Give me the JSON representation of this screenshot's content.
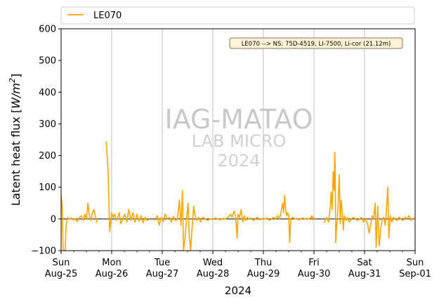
{
  "chart_data": {
    "type": "line",
    "xlabel": "2024",
    "ylabel_main": "Latent heat flux [",
    "ylabel_unit": "W/m",
    "ylabel_exp": "2",
    "ylabel_close": "]",
    "ylim": [
      -100,
      600
    ],
    "yticks": [
      -100,
      0,
      100,
      200,
      300,
      400,
      500,
      600
    ],
    "xlim": [
      0,
      7
    ],
    "xticks": [
      {
        "x": 0,
        "day": "Sun",
        "date": "Aug-25"
      },
      {
        "x": 1,
        "day": "Mon",
        "date": "Aug-26"
      },
      {
        "x": 2,
        "day": "Tue",
        "date": "Aug-27"
      },
      {
        "x": 3,
        "day": "Wed",
        "date": "Aug-28"
      },
      {
        "x": 4,
        "day": "Thu",
        "date": "Aug-29"
      },
      {
        "x": 5,
        "day": "Fri",
        "date": "Aug-30"
      },
      {
        "x": 6,
        "day": "Sat",
        "date": "Aug-31"
      },
      {
        "x": 7,
        "day": "Sun",
        "date": "Sep-01"
      }
    ],
    "grid": "vertical-major",
    "zero_line": true,
    "legend_position": "top, above plot",
    "annotation": "LE070 --> NS: 75D-4519, LI-7500, Li-cor (21.12m)",
    "watermark": [
      "IAG-MATAO",
      "LAB MICRO",
      "2024"
    ],
    "series": [
      {
        "name": "LE070",
        "color": "#FFA500",
        "segments": [
          [
            [
              0.0,
              75
            ],
            [
              0.02,
              40
            ],
            [
              0.04,
              -95
            ],
            [
              0.06,
              -100
            ],
            [
              0.08,
              -100
            ],
            [
              0.1,
              -20
            ],
            [
              0.13,
              5
            ],
            [
              0.16,
              -2
            ],
            [
              0.2,
              3
            ],
            [
              0.24,
              -3
            ],
            [
              0.28,
              0
            ],
            [
              0.32,
              -8
            ],
            [
              0.36,
              5
            ],
            [
              0.4,
              10
            ],
            [
              0.44,
              -5
            ],
            [
              0.47,
              15
            ],
            [
              0.5,
              0
            ],
            [
              0.53,
              50
            ],
            [
              0.56,
              10
            ],
            [
              0.59,
              -5
            ],
            [
              0.62,
              20
            ],
            [
              0.65,
              30
            ],
            [
              0.68,
              5
            ],
            [
              0.71,
              -12
            ]
          ],
          [
            [
              0.89,
              245
            ],
            [
              0.93,
              150
            ],
            [
              0.96,
              -40
            ],
            [
              1.0,
              20
            ],
            [
              1.03,
              5
            ],
            [
              1.06,
              15
            ],
            [
              1.09,
              -5
            ],
            [
              1.12,
              5
            ],
            [
              1.15,
              20
            ],
            [
              1.18,
              -15
            ],
            [
              1.22,
              0
            ],
            [
              1.26,
              15
            ],
            [
              1.3,
              -10
            ],
            [
              1.34,
              30
            ],
            [
              1.38,
              -5
            ],
            [
              1.42,
              20
            ],
            [
              1.46,
              -10
            ],
            [
              1.5,
              15
            ],
            [
              1.54,
              -8
            ],
            [
              1.58,
              10
            ],
            [
              1.62,
              -12
            ],
            [
              1.66,
              5
            ],
            [
              1.7,
              -5
            ],
            [
              1.75,
              0
            ]
          ],
          [
            [
              1.85,
              -5
            ],
            [
              1.9,
              10
            ],
            [
              1.94,
              -20
            ],
            [
              1.98,
              5
            ],
            [
              2.02,
              -8
            ],
            [
              2.06,
              15
            ],
            [
              2.1,
              0
            ],
            [
              2.14,
              5
            ],
            [
              2.18,
              -10
            ],
            [
              2.22,
              8
            ],
            [
              2.26,
              -5
            ],
            [
              2.3,
              0
            ],
            [
              2.34,
              60
            ],
            [
              2.37,
              -20
            ],
            [
              2.4,
              90
            ],
            [
              2.42,
              -100
            ],
            [
              2.45,
              -60
            ],
            [
              2.48,
              0
            ],
            [
              2.51,
              50
            ],
            [
              2.53,
              -40
            ],
            [
              2.56,
              -100
            ],
            [
              2.59,
              -30
            ],
            [
              2.62,
              40
            ],
            [
              2.65,
              10
            ],
            [
              2.68,
              -5
            ],
            [
              2.72,
              5
            ],
            [
              2.76,
              -10
            ],
            [
              2.8,
              5
            ],
            [
              2.85,
              0
            ],
            [
              2.9,
              -5
            ],
            [
              2.95,
              0
            ],
            [
              3.0,
              -2
            ],
            [
              3.05,
              3
            ],
            [
              3.1,
              0
            ],
            [
              3.15,
              -3
            ],
            [
              3.2,
              2
            ],
            [
              3.25,
              0
            ],
            [
              3.3,
              5
            ],
            [
              3.35,
              15
            ],
            [
              3.38,
              5
            ],
            [
              3.42,
              25
            ],
            [
              3.45,
              10
            ],
            [
              3.48,
              -60
            ],
            [
              3.5,
              15
            ],
            [
              3.53,
              5
            ],
            [
              3.56,
              30
            ],
            [
              3.59,
              -10
            ],
            [
              3.62,
              10
            ],
            [
              3.65,
              -5
            ],
            [
              3.68,
              5
            ],
            [
              3.72,
              0
            ],
            [
              3.76,
              3
            ],
            [
              3.8,
              -5
            ],
            [
              3.84,
              0
            ],
            [
              3.88,
              5
            ],
            [
              3.92,
              -3
            ],
            [
              3.96,
              0
            ],
            [
              4.0,
              2
            ],
            [
              4.04,
              0
            ],
            [
              4.08,
              3
            ],
            [
              4.12,
              -5
            ],
            [
              4.16,
              0
            ],
            [
              4.2,
              5
            ],
            [
              4.24,
              0
            ],
            [
              4.28,
              10
            ],
            [
              4.32,
              0
            ],
            [
              4.36,
              30
            ],
            [
              4.38,
              50
            ],
            [
              4.4,
              20
            ],
            [
              4.42,
              75
            ],
            [
              4.44,
              30
            ],
            [
              4.46,
              10
            ],
            [
              4.48,
              20
            ],
            [
              4.5,
              10
            ],
            [
              4.52,
              -75
            ],
            [
              4.54,
              0
            ],
            [
              4.58,
              5
            ],
            [
              4.62,
              0
            ],
            [
              4.66,
              2
            ],
            [
              4.7,
              -3
            ],
            [
              4.74,
              0
            ],
            [
              4.78,
              3
            ],
            [
              4.82,
              0
            ],
            [
              4.86,
              2
            ],
            [
              4.9,
              0
            ],
            [
              4.94,
              5
            ],
            [
              4.96,
              10
            ],
            [
              4.97,
              -3
            ],
            [
              4.98,
              5
            ],
            [
              5.02,
              0
            ]
          ],
          [
            [
              5.2,
              -12
            ],
            [
              5.25,
              5
            ],
            [
              5.29,
              -10
            ],
            [
              5.32,
              35
            ],
            [
              5.34,
              85
            ],
            [
              5.36,
              30
            ],
            [
              5.38,
              150
            ],
            [
              5.4,
              90
            ],
            [
              5.41,
              210
            ],
            [
              5.42,
              160
            ],
            [
              5.43,
              -75
            ],
            [
              5.45,
              -20
            ],
            [
              5.47,
              20
            ],
            [
              5.5,
              140
            ],
            [
              5.52,
              -15
            ],
            [
              5.54,
              60
            ],
            [
              5.56,
              20
            ],
            [
              5.58,
              -35
            ],
            [
              5.6,
              10
            ],
            [
              5.63,
              -5
            ],
            [
              5.66,
              5
            ],
            [
              5.7,
              -10
            ],
            [
              5.74,
              0
            ],
            [
              5.78,
              5
            ],
            [
              5.82,
              0
            ],
            [
              5.86,
              -5
            ],
            [
              5.9,
              0
            ],
            [
              5.94,
              5
            ],
            [
              5.98,
              -10
            ],
            [
              6.02,
              0
            ],
            [
              6.06,
              -15
            ],
            [
              6.09,
              -45
            ],
            [
              6.12,
              -20
            ],
            [
              6.15,
              10
            ],
            [
              6.18,
              0
            ],
            [
              6.21,
              50
            ],
            [
              6.23,
              -90
            ],
            [
              6.26,
              40
            ],
            [
              6.29,
              -85
            ],
            [
              6.32,
              -30
            ],
            [
              6.35,
              0
            ],
            [
              6.38,
              5
            ],
            [
              6.41,
              -20
            ],
            [
              6.44,
              45
            ],
            [
              6.46,
              100
            ],
            [
              6.48,
              -60
            ],
            [
              6.51,
              10
            ],
            [
              6.54,
              -10
            ],
            [
              6.57,
              5
            ],
            [
              6.6,
              0
            ],
            [
              6.64,
              -5
            ],
            [
              6.68,
              5
            ],
            [
              6.72,
              0
            ],
            [
              6.76,
              -5
            ],
            [
              6.8,
              5
            ],
            [
              6.84,
              0
            ],
            [
              6.88,
              10
            ],
            [
              6.92,
              -5
            ],
            [
              6.96,
              3
            ],
            [
              7.0,
              0
            ]
          ]
        ]
      }
    ]
  }
}
